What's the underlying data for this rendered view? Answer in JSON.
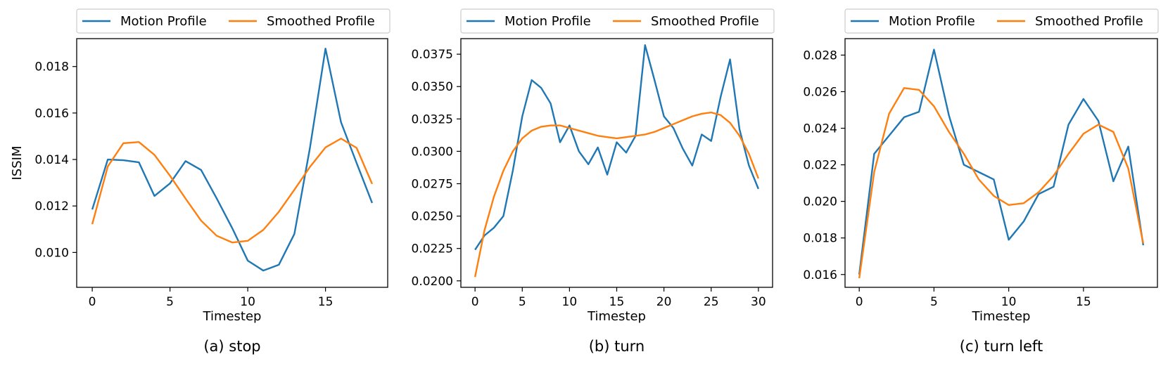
{
  "chart_data": [
    {
      "type": "line",
      "caption": "(a) stop",
      "xlabel": "Timestep",
      "ylabel": "ISSIM",
      "xlim": [
        -1,
        19
      ],
      "ylim": [
        0.0085,
        0.0192
      ],
      "xticks": [
        0,
        5,
        10,
        15
      ],
      "xtick_labels": [
        "0",
        "5",
        "10",
        "15"
      ],
      "yticks": [
        0.01,
        0.012,
        0.014,
        0.016,
        0.018
      ],
      "ytick_labels": [
        "0.010",
        "0.012",
        "0.014",
        "0.016",
        "0.018"
      ],
      "legend": {
        "placement": "top-center-outside",
        "entries": [
          "Motion Profile",
          "Smoothed Profile"
        ]
      },
      "series": [
        {
          "name": "Motion Profile",
          "color": "#1f77b4",
          "x": [
            0,
            1,
            2,
            3,
            4,
            5,
            6,
            7,
            8,
            9,
            10,
            11,
            12,
            13,
            14,
            15,
            16,
            17,
            18
          ],
          "values": [
            0.01185,
            0.014,
            0.01397,
            0.01388,
            0.01243,
            0.01297,
            0.01393,
            0.01355,
            0.01233,
            0.01105,
            0.00965,
            0.00922,
            0.00947,
            0.0108,
            0.0145,
            0.01877,
            0.0156,
            0.01385,
            0.01213
          ]
        },
        {
          "name": "Smoothed Profile",
          "color": "#ff7f0e",
          "x": [
            0,
            1,
            2,
            3,
            4,
            5,
            6,
            7,
            8,
            9,
            10,
            11,
            12,
            13,
            14,
            15,
            16,
            17,
            18
          ],
          "values": [
            0.01122,
            0.0137,
            0.0147,
            0.01475,
            0.0142,
            0.0133,
            0.01232,
            0.01137,
            0.01072,
            0.01043,
            0.0105,
            0.01097,
            0.01175,
            0.0127,
            0.01368,
            0.01452,
            0.0149,
            0.0145,
            0.01295
          ]
        }
      ]
    },
    {
      "type": "line",
      "caption": "(b) turn",
      "xlabel": "Timestep",
      "ylabel": "",
      "xlim": [
        -1.5,
        31.5
      ],
      "ylim": [
        0.0195,
        0.0387
      ],
      "xticks": [
        0,
        5,
        10,
        15,
        20,
        25,
        30
      ],
      "xtick_labels": [
        "0",
        "5",
        "10",
        "15",
        "20",
        "25",
        "30"
      ],
      "yticks": [
        0.02,
        0.0225,
        0.025,
        0.0275,
        0.03,
        0.0325,
        0.035,
        0.0375
      ],
      "ytick_labels": [
        "0.0200",
        "0.0225",
        "0.0250",
        "0.0275",
        "0.0300",
        "0.0325",
        "0.0350",
        "0.0375"
      ],
      "legend": {
        "placement": "top-center-outside",
        "entries": [
          "Motion Profile",
          "Smoothed Profile"
        ]
      },
      "series": [
        {
          "name": "Motion Profile",
          "color": "#1f77b4",
          "x": [
            0,
            1,
            2,
            3,
            4,
            5,
            6,
            7,
            8,
            9,
            10,
            11,
            12,
            13,
            14,
            15,
            16,
            17,
            18,
            19,
            20,
            21,
            22,
            23,
            24,
            25,
            26,
            27,
            28,
            29,
            30
          ],
          "values": [
            0.0224,
            0.0235,
            0.0241,
            0.025,
            0.0285,
            0.0327,
            0.0355,
            0.0349,
            0.0337,
            0.0307,
            0.032,
            0.03,
            0.029,
            0.0303,
            0.0282,
            0.0307,
            0.0299,
            0.0312,
            0.0382,
            0.0355,
            0.0327,
            0.0318,
            0.0302,
            0.0289,
            0.0313,
            0.0308,
            0.0342,
            0.0371,
            0.0317,
            0.0289,
            0.0271
          ]
        },
        {
          "name": "Smoothed Profile",
          "color": "#ff7f0e",
          "x": [
            0,
            1,
            2,
            3,
            4,
            5,
            6,
            7,
            8,
            9,
            10,
            11,
            12,
            13,
            14,
            15,
            16,
            17,
            18,
            19,
            20,
            21,
            22,
            23,
            24,
            25,
            26,
            27,
            28,
            29,
            30
          ],
          "values": [
            0.0203,
            0.0239,
            0.0265,
            0.0285,
            0.03,
            0.031,
            0.0316,
            0.0319,
            0.032,
            0.032,
            0.0318,
            0.0316,
            0.0314,
            0.0312,
            0.0311,
            0.031,
            0.0311,
            0.0312,
            0.0313,
            0.0315,
            0.0318,
            0.0321,
            0.0324,
            0.0327,
            0.0329,
            0.033,
            0.0328,
            0.0322,
            0.0312,
            0.0298,
            0.0279
          ]
        }
      ]
    },
    {
      "type": "line",
      "caption": "(c) turn left",
      "xlabel": "Timestep",
      "ylabel": "",
      "xlim": [
        -0.95,
        19.95
      ],
      "ylim": [
        0.0153,
        0.0289
      ],
      "xticks": [
        0,
        5,
        10,
        15
      ],
      "xtick_labels": [
        "0",
        "5",
        "10",
        "15"
      ],
      "yticks": [
        0.016,
        0.018,
        0.02,
        0.022,
        0.024,
        0.026,
        0.028
      ],
      "ytick_labels": [
        "0.016",
        "0.018",
        "0.020",
        "0.022",
        "0.024",
        "0.026",
        "0.028"
      ],
      "legend": {
        "placement": "top-center-outside",
        "entries": [
          "Motion Profile",
          "Smoothed Profile"
        ]
      },
      "series": [
        {
          "name": "Motion Profile",
          "color": "#1f77b4",
          "x": [
            0,
            1,
            2,
            3,
            4,
            5,
            6,
            7,
            8,
            9,
            10,
            11,
            12,
            13,
            14,
            15,
            16,
            17,
            18,
            19
          ],
          "values": [
            0.016,
            0.0226,
            0.0236,
            0.0246,
            0.0249,
            0.0283,
            0.0247,
            0.022,
            0.0216,
            0.0212,
            0.0179,
            0.0189,
            0.0204,
            0.0208,
            0.0242,
            0.0256,
            0.0244,
            0.0211,
            0.023,
            0.0176
          ]
        },
        {
          "name": "Smoothed Profile",
          "color": "#ff7f0e",
          "x": [
            0,
            1,
            2,
            3,
            4,
            5,
            6,
            7,
            8,
            9,
            10,
            11,
            12,
            13,
            14,
            15,
            16,
            17,
            18,
            19
          ],
          "values": [
            0.0158,
            0.0216,
            0.0248,
            0.0262,
            0.0261,
            0.0252,
            0.0238,
            0.0226,
            0.0212,
            0.0203,
            0.0198,
            0.0199,
            0.0205,
            0.0214,
            0.0226,
            0.0237,
            0.0242,
            0.0238,
            0.0218,
            0.0177
          ]
        }
      ]
    }
  ]
}
